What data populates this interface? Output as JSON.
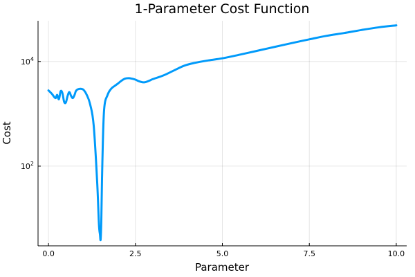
{
  "chart_data": {
    "type": "line",
    "title": "1-Parameter Cost Function",
    "xlabel": "Parameter",
    "ylabel": "Cost",
    "xlim": [
      -0.3,
      10.3
    ],
    "ylim": [
      3,
      60000
    ],
    "yscale": "log",
    "grid": true,
    "legend": "none",
    "xticks": [
      {
        "value": 0,
        "label": "0.0"
      },
      {
        "value": 2.5,
        "label": "2.5"
      },
      {
        "value": 5,
        "label": "5.0"
      },
      {
        "value": 7.5,
        "label": "7.5"
      },
      {
        "value": 10,
        "label": "10.0"
      }
    ],
    "yticks": [
      {
        "value": 100,
        "base": "10",
        "exp": "2"
      },
      {
        "value": 10000,
        "base": "10",
        "exp": "4"
      }
    ],
    "line_color": "#009AFA",
    "series": [
      {
        "x": [
          0,
          0.1,
          0.2,
          0.25,
          0.3,
          0.35,
          0.4,
          0.45,
          0.5,
          0.55,
          0.6,
          0.65,
          0.7,
          0.75,
          0.8,
          0.9,
          1.0,
          1.1,
          1.2,
          1.3,
          1.4,
          1.45,
          1.48,
          1.5,
          1.52,
          1.55,
          1.6,
          1.7,
          1.8,
          1.9,
          2.0,
          2.1,
          2.2,
          2.3,
          2.4,
          2.5,
          2.6,
          2.75,
          2.9,
          3.0,
          3.3,
          3.6,
          3.9,
          4.2,
          4.6,
          5.0,
          5.5,
          6.0,
          6.5,
          7.0,
          7.5,
          8.0,
          8.5,
          9.0,
          9.5,
          10.0
        ],
        "y": [
          2800,
          2400,
          2000,
          2300,
          1900,
          2700,
          2500,
          1700,
          1650,
          2200,
          2600,
          2200,
          2000,
          2300,
          2800,
          3000,
          2900,
          2300,
          1500,
          600,
          50,
          8,
          5,
          4,
          10,
          120,
          1200,
          2300,
          3000,
          3400,
          3800,
          4300,
          4700,
          4800,
          4700,
          4500,
          4200,
          4000,
          4300,
          4600,
          5400,
          6700,
          8300,
          9400,
          10500,
          11500,
          13500,
          16000,
          19000,
          22500,
          26500,
          31000,
          35000,
          40000,
          45000,
          49000
        ]
      }
    ]
  }
}
